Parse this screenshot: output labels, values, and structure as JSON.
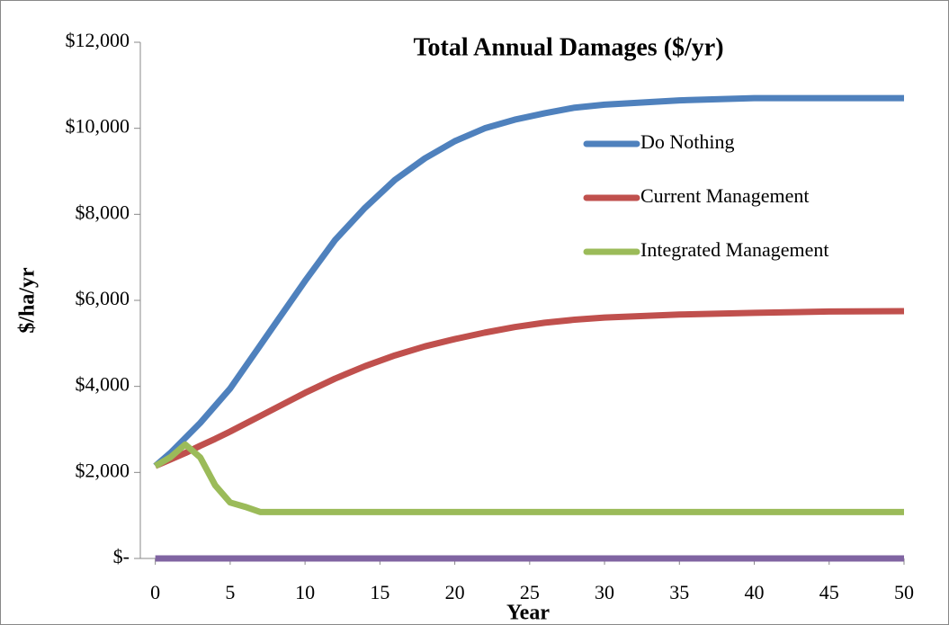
{
  "chart_data": {
    "type": "line",
    "title": "Total Annual Damages ($/yr)",
    "x_label": "Year",
    "y_label": "$/ha/yr",
    "x": [
      0,
      1,
      2,
      3,
      4,
      5,
      6,
      7,
      8,
      9,
      10,
      12,
      14,
      16,
      18,
      20,
      22,
      24,
      26,
      28,
      30,
      35,
      40,
      45,
      50
    ],
    "series": [
      {
        "name": "Do Nothing",
        "color": "#4f81bd",
        "values": [
          2150,
          2450,
          2800,
          3150,
          3550,
          3950,
          4450,
          4950,
          5450,
          5950,
          6450,
          7400,
          8150,
          8800,
          9300,
          9700,
          10000,
          10200,
          10350,
          10480,
          10550,
          10650,
          10700,
          10700,
          10700
        ]
      },
      {
        "name": "Current Management",
        "color": "#c0504d",
        "values": [
          2150,
          2300,
          2450,
          2620,
          2780,
          2950,
          3130,
          3310,
          3490,
          3670,
          3850,
          4180,
          4470,
          4720,
          4930,
          5100,
          5250,
          5380,
          5480,
          5550,
          5600,
          5670,
          5710,
          5740,
          5750
        ]
      },
      {
        "name": "Integrated Management",
        "color": "#9bbb59",
        "values": [
          2150,
          2350,
          2650,
          2350,
          1700,
          1300,
          1200,
          1080,
          1080,
          1080,
          1080,
          1080,
          1080,
          1080,
          1080,
          1080,
          1080,
          1080,
          1080,
          1080,
          1080,
          1080,
          1080,
          1080,
          1080
        ]
      },
      {
        "color": "#8064a2",
        "values": [
          0,
          0,
          0,
          0,
          0,
          0,
          0,
          0,
          0,
          0,
          0,
          0,
          0,
          0,
          0,
          0,
          0,
          0,
          0,
          0,
          0,
          0,
          0,
          0,
          0
        ]
      }
    ],
    "xlim": [
      -1,
      50
    ],
    "xticks": [
      0,
      5,
      10,
      15,
      20,
      25,
      30,
      35,
      40,
      45,
      50
    ],
    "ylim": [
      0,
      12000
    ],
    "yticks": [
      {
        "value": 0,
        "label": "$-"
      },
      {
        "value": 2000,
        "label": "$2,000"
      },
      {
        "value": 4000,
        "label": "$4,000"
      },
      {
        "value": 6000,
        "label": "$6,000"
      },
      {
        "value": 8000,
        "label": "$8,000"
      },
      {
        "value": 10000,
        "label": "$10,000"
      },
      {
        "value": 12000,
        "label": "$12,000"
      }
    ],
    "legend": "upper right"
  }
}
